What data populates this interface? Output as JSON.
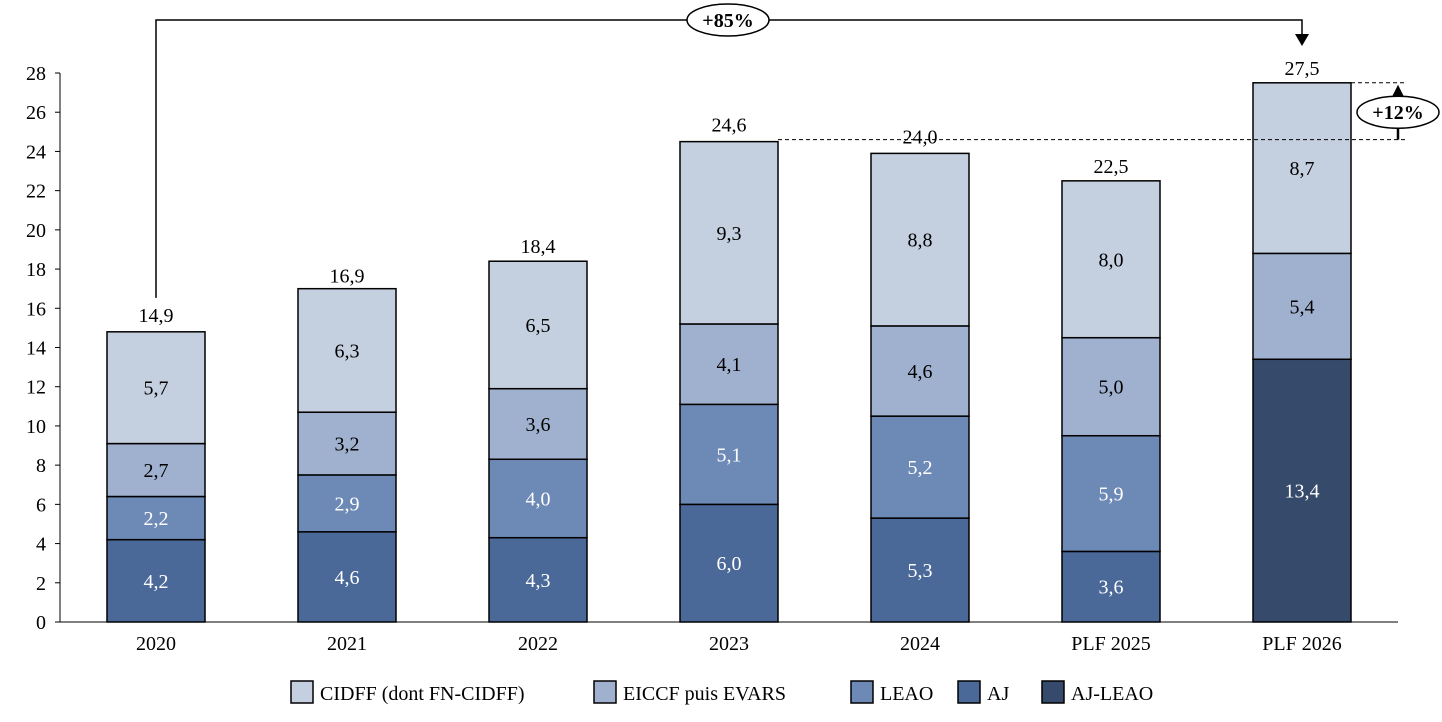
{
  "chart_data": {
    "type": "bar",
    "stacked": true,
    "categories": [
      "2020",
      "2021",
      "2022",
      "2023",
      "2024",
      "PLF 2025",
      "PLF 2026"
    ],
    "series": [
      {
        "name": "AJ-LEAO",
        "color": "#364a6b",
        "label_color": "#ffffff",
        "values": [
          0,
          0,
          0,
          0,
          0,
          0,
          13.4
        ]
      },
      {
        "name": "AJ",
        "color": "#4a6898",
        "label_color": "#ffffff",
        "values": [
          4.2,
          4.6,
          4.3,
          6.0,
          5.3,
          3.6,
          0
        ]
      },
      {
        "name": "LEAO",
        "color": "#6d8ab6",
        "label_color": "#ffffff",
        "values": [
          2.2,
          2.9,
          4.0,
          5.1,
          5.2,
          5.9,
          0
        ]
      },
      {
        "name": "EICCF puis EVARS",
        "color": "#9fb1cf",
        "label_color": "#000000",
        "values": [
          2.7,
          3.2,
          3.6,
          4.1,
          4.6,
          5.0,
          5.4
        ]
      },
      {
        "name": "CIDFF (dont FN-CIDFF)",
        "color": "#c4cfe0",
        "label_color": "#000000",
        "values": [
          5.7,
          6.3,
          6.5,
          9.3,
          8.8,
          8.0,
          8.7
        ]
      }
    ],
    "totals": [
      14.9,
      16.9,
      18.4,
      24.6,
      24.0,
      22.5,
      27.5
    ],
    "legend_order": [
      "CIDFF (dont FN-CIDFF)",
      "EICCF puis EVARS",
      "LEAO",
      "AJ",
      "AJ-LEAO"
    ],
    "legend_placement": "bottom",
    "ylim": [
      0,
      28
    ],
    "yticks": [
      0,
      2,
      4,
      6,
      8,
      10,
      12,
      14,
      16,
      18,
      20,
      22,
      24,
      26,
      28
    ],
    "grid": false,
    "title": "",
    "xlabel": "",
    "ylabel": "",
    "annotations": [
      {
        "text": "+85%",
        "from": "2020",
        "to": "PLF 2026"
      },
      {
        "text": "+12%",
        "from": "2023",
        "to": "PLF 2026"
      }
    ]
  }
}
